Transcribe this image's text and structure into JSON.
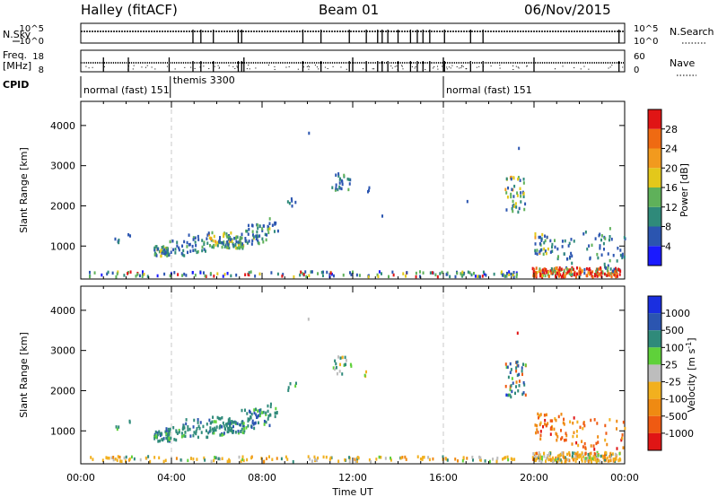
{
  "header": {
    "station": "Halley (fitACF)",
    "beam": "Beam 01",
    "date": "06/Nov/2015"
  },
  "nsky_panel": {
    "left_label": "N.Sky",
    "right_label": "N.Search",
    "left_ticks": [
      "10^5",
      "10^0"
    ],
    "right_ticks": [
      "10^5",
      "10^0"
    ],
    "drop_hours": [
      4.95,
      5.3,
      5.85,
      6.95,
      7.1,
      9.8,
      10.6,
      11.85,
      12.6,
      13.1,
      13.3,
      13.55,
      14.0,
      14.55,
      14.85,
      15.1,
      15.4,
      16.05,
      17.2,
      17.75,
      23.75
    ]
  },
  "freq_panel": {
    "left_label_1": "Freq.",
    "left_label_2": "[MHz]",
    "right_label": "Nave",
    "left_ticks": [
      "18",
      "8"
    ],
    "right_ticks": [
      "60",
      "0"
    ]
  },
  "cpid_panel": {
    "label": "CPID",
    "segments": [
      {
        "start_hour": 0.0,
        "label": "normal (fast) 151"
      },
      {
        "start_hour": 3.95,
        "label": "themis 3300"
      },
      {
        "start_hour": 16.0,
        "label": "normal (fast) 151"
      }
    ]
  },
  "chart_data": [
    {
      "type": "heatmap",
      "parameter": "Power",
      "ylabel": "Slant Range [km]",
      "ylim": [
        180,
        4600
      ],
      "xlim_hours": [
        0,
        24
      ],
      "yticks": [
        1000,
        2000,
        3000,
        4000
      ],
      "colorbar": {
        "label": "Power [dB]",
        "levels": [
          "4",
          "8",
          "12",
          "16",
          "20",
          "24",
          "28"
        ],
        "colors": [
          "#1a1aff",
          "#2b55b0",
          "#2f8a7a",
          "#5fb15a",
          "#e3c81b",
          "#f29a1e",
          "#ef6a12",
          "#e01515"
        ]
      },
      "clusters": [
        {
          "h0": 1.45,
          "h1": 1.65,
          "r0": 1000,
          "r1": 1150,
          "n": 4,
          "weights": [
            0,
            6,
            2,
            0,
            0,
            0,
            0,
            0
          ]
        },
        {
          "h0": 2.05,
          "h1": 2.2,
          "r0": 1150,
          "r1": 1250,
          "n": 2,
          "weights": [
            0,
            5,
            0,
            0,
            0,
            0,
            0,
            0
          ]
        },
        {
          "h0": 3.2,
          "h1": 3.9,
          "r0": 700,
          "r1": 950,
          "n": 40,
          "weights": [
            0,
            4,
            5,
            2,
            1,
            0,
            0,
            0
          ]
        },
        {
          "h0": 3.7,
          "h1": 4.6,
          "r0": 700,
          "r1": 1100,
          "n": 22,
          "weights": [
            0,
            4,
            3,
            2,
            0,
            0,
            0,
            0
          ]
        },
        {
          "h0": 4.5,
          "h1": 5.6,
          "r0": 800,
          "r1": 1250,
          "n": 30,
          "weights": [
            0,
            5,
            3,
            1,
            0,
            0,
            0,
            0
          ]
        },
        {
          "h0": 5.6,
          "h1": 6.6,
          "r0": 850,
          "r1": 1300,
          "n": 45,
          "weights": [
            0,
            3,
            4,
            4,
            3,
            1,
            0,
            0
          ]
        },
        {
          "h0": 6.4,
          "h1": 7.2,
          "r0": 900,
          "r1": 1200,
          "n": 45,
          "weights": [
            0,
            3,
            4,
            4,
            3,
            1,
            0,
            0
          ]
        },
        {
          "h0": 7.0,
          "h1": 8.3,
          "r0": 1000,
          "r1": 1500,
          "n": 50,
          "weights": [
            0,
            5,
            4,
            2,
            1,
            0,
            0,
            0
          ]
        },
        {
          "h0": 8.2,
          "h1": 8.7,
          "r0": 1300,
          "r1": 1650,
          "n": 10,
          "weights": [
            0,
            5,
            2,
            1,
            0,
            0,
            0,
            0
          ]
        },
        {
          "h0": 9.1,
          "h1": 9.5,
          "r0": 1950,
          "r1": 2150,
          "n": 6,
          "weights": [
            0,
            4,
            2,
            0,
            0,
            0,
            0,
            0
          ]
        },
        {
          "h0": 10.0,
          "h1": 10.1,
          "r0": 3700,
          "r1": 3780,
          "n": 1,
          "weights": [
            0,
            5,
            0,
            0,
            0,
            0,
            0,
            0
          ]
        },
        {
          "h0": 11.0,
          "h1": 11.9,
          "r0": 2350,
          "r1": 2800,
          "n": 24,
          "weights": [
            0,
            5,
            3,
            1,
            0,
            0,
            0,
            0
          ]
        },
        {
          "h0": 12.5,
          "h1": 12.7,
          "r0": 2300,
          "r1": 2450,
          "n": 3,
          "weights": [
            0,
            5,
            1,
            0,
            0,
            0,
            0,
            0
          ]
        },
        {
          "h0": 13.2,
          "h1": 13.3,
          "r0": 1700,
          "r1": 1780,
          "n": 1,
          "weights": [
            0,
            5,
            0,
            0,
            0,
            0,
            0,
            0
          ]
        },
        {
          "h0": 17.0,
          "h1": 17.1,
          "r0": 2050,
          "r1": 2130,
          "n": 1,
          "weights": [
            0,
            5,
            0,
            0,
            0,
            0,
            0,
            0
          ]
        },
        {
          "h0": 18.7,
          "h1": 19.6,
          "r0": 1800,
          "r1": 2700,
          "n": 45,
          "weights": [
            0,
            3,
            3,
            3,
            3,
            1,
            0,
            0
          ]
        },
        {
          "h0": 19.2,
          "h1": 19.3,
          "r0": 3380,
          "r1": 3440,
          "n": 1,
          "weights": [
            0,
            5,
            0,
            0,
            0,
            0,
            0,
            0
          ]
        },
        {
          "h0": 20.0,
          "h1": 20.6,
          "r0": 750,
          "r1": 1300,
          "n": 30,
          "weights": [
            0,
            3,
            4,
            3,
            2,
            1,
            0,
            0
          ]
        },
        {
          "h0": 20.6,
          "h1": 21.6,
          "r0": 600,
          "r1": 1100,
          "n": 22,
          "weights": [
            0,
            4,
            3,
            2,
            0,
            0,
            0,
            0
          ]
        },
        {
          "h0": 21.6,
          "h1": 23.5,
          "r0": 400,
          "r1": 1400,
          "n": 35,
          "weights": [
            0,
            5,
            3,
            2,
            0,
            0,
            0,
            0
          ]
        },
        {
          "h0": 19.9,
          "h1": 23.8,
          "r0": 190,
          "r1": 420,
          "n": 210,
          "weights": [
            0,
            1,
            1,
            2,
            2,
            3,
            5,
            8
          ]
        },
        {
          "h0": 0.3,
          "h1": 19.5,
          "r0": 190,
          "r1": 320,
          "n": 160,
          "weights": [
            1,
            3,
            2,
            2,
            1,
            0,
            0,
            1
          ]
        },
        {
          "h0": 23.6,
          "h1": 24.0,
          "r0": 500,
          "r1": 1200,
          "n": 10,
          "weights": [
            0,
            4,
            3,
            1,
            0,
            0,
            0,
            0
          ]
        }
      ]
    },
    {
      "type": "heatmap",
      "parameter": "Velocity",
      "ylabel": "Slant Range [km]",
      "ylim": [
        180,
        4600
      ],
      "xlim_hours": [
        0,
        24
      ],
      "yticks": [
        1000,
        2000,
        3000,
        4000
      ],
      "xticks": [
        "00:00",
        "04:00",
        "08:00",
        "12:00",
        "16:00",
        "20:00",
        "00:00"
      ],
      "xlabel": "Time UT",
      "colorbar": {
        "label": "Velocity [m s^-1]",
        "levels": [
          "1000",
          "500",
          "100",
          "25",
          "-25",
          "-100",
          "-500",
          "-1000"
        ],
        "colors": [
          "#1a2fe0",
          "#2b55b0",
          "#2f8a7a",
          "#5fd13a",
          "#bdbdbd",
          "#f2b01e",
          "#ef8a12",
          "#ef5a12",
          "#e01515"
        ]
      },
      "clusters": [
        {
          "h0": 1.45,
          "h1": 1.65,
          "r0": 1000,
          "r1": 1150,
          "n": 3,
          "weights": [
            0,
            1,
            3,
            1,
            0,
            0,
            0,
            0,
            0
          ]
        },
        {
          "h0": 2.05,
          "h1": 2.2,
          "r0": 1150,
          "r1": 1250,
          "n": 2,
          "weights": [
            0,
            0,
            3,
            0,
            0,
            0,
            0,
            0,
            0
          ]
        },
        {
          "h0": 3.2,
          "h1": 3.9,
          "r0": 700,
          "r1": 950,
          "n": 40,
          "weights": [
            0,
            2,
            6,
            1,
            0,
            0,
            0,
            0,
            0
          ]
        },
        {
          "h0": 3.7,
          "h1": 4.6,
          "r0": 700,
          "r1": 1100,
          "n": 22,
          "weights": [
            0,
            2,
            6,
            1,
            0,
            0,
            0,
            0,
            0
          ]
        },
        {
          "h0": 4.5,
          "h1": 5.6,
          "r0": 800,
          "r1": 1250,
          "n": 30,
          "weights": [
            0,
            2,
            6,
            1,
            0,
            0,
            0,
            0,
            0
          ]
        },
        {
          "h0": 5.6,
          "h1": 6.6,
          "r0": 850,
          "r1": 1300,
          "n": 45,
          "weights": [
            0,
            2,
            6,
            2,
            0,
            0,
            0,
            0,
            0
          ]
        },
        {
          "h0": 6.4,
          "h1": 7.2,
          "r0": 900,
          "r1": 1200,
          "n": 45,
          "weights": [
            0,
            2,
            6,
            2,
            0,
            0,
            0,
            0,
            0
          ]
        },
        {
          "h0": 7.0,
          "h1": 8.3,
          "r0": 1000,
          "r1": 1500,
          "n": 50,
          "weights": [
            0,
            2,
            6,
            2,
            0,
            0,
            0,
            0,
            0
          ]
        },
        {
          "h0": 8.2,
          "h1": 8.7,
          "r0": 1300,
          "r1": 1650,
          "n": 10,
          "weights": [
            0,
            1,
            6,
            1,
            0,
            0,
            0,
            0,
            0
          ]
        },
        {
          "h0": 9.1,
          "h1": 9.5,
          "r0": 1950,
          "r1": 2150,
          "n": 5,
          "weights": [
            0,
            0,
            3,
            1,
            0,
            1,
            0,
            0,
            0
          ]
        },
        {
          "h0": 10.0,
          "h1": 10.1,
          "r0": 3700,
          "r1": 3780,
          "n": 1,
          "weights": [
            0,
            0,
            0,
            0,
            1,
            0,
            0,
            0,
            0
          ]
        },
        {
          "h0": 11.0,
          "h1": 11.9,
          "r0": 2350,
          "r1": 2800,
          "n": 20,
          "weights": [
            0,
            0,
            2,
            4,
            2,
            1,
            0,
            0,
            0
          ]
        },
        {
          "h0": 12.5,
          "h1": 12.7,
          "r0": 2300,
          "r1": 2450,
          "n": 3,
          "weights": [
            0,
            0,
            0,
            1,
            0,
            2,
            0,
            0,
            0
          ]
        },
        {
          "h0": 18.7,
          "h1": 19.6,
          "r0": 1800,
          "r1": 2700,
          "n": 45,
          "weights": [
            1,
            4,
            4,
            1,
            0,
            0,
            1,
            2,
            0
          ]
        },
        {
          "h0": 19.2,
          "h1": 19.3,
          "r0": 3380,
          "r1": 3440,
          "n": 1,
          "weights": [
            0,
            0,
            0,
            0,
            0,
            0,
            0,
            1,
            1
          ]
        },
        {
          "h0": 20.0,
          "h1": 21.4,
          "r0": 700,
          "r1": 1400,
          "n": 50,
          "weights": [
            0,
            0,
            0,
            0,
            0,
            1,
            3,
            3,
            1
          ]
        },
        {
          "h0": 21.4,
          "h1": 23.4,
          "r0": 500,
          "r1": 1300,
          "n": 35,
          "weights": [
            0,
            0,
            0,
            0,
            0,
            2,
            3,
            3,
            1
          ]
        },
        {
          "h0": 19.9,
          "h1": 23.8,
          "r0": 190,
          "r1": 420,
          "n": 200,
          "weights": [
            0,
            0,
            1,
            1,
            2,
            8,
            3,
            1,
            0
          ]
        },
        {
          "h0": 0.3,
          "h1": 19.5,
          "r0": 190,
          "r1": 320,
          "n": 150,
          "weights": [
            0,
            0,
            1,
            1,
            2,
            6,
            1,
            0,
            0
          ]
        },
        {
          "h0": 23.6,
          "h1": 24.0,
          "r0": 500,
          "r1": 1200,
          "n": 10,
          "weights": [
            0,
            0,
            0,
            0,
            0,
            2,
            3,
            2,
            1
          ]
        }
      ]
    }
  ]
}
